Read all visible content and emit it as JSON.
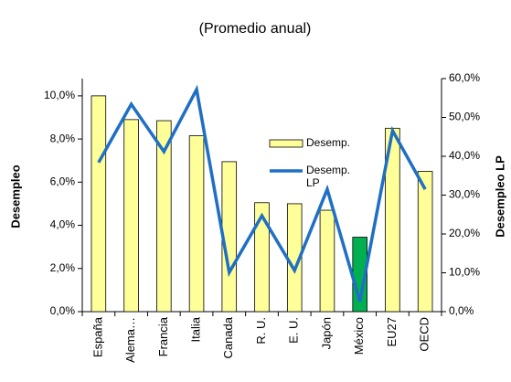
{
  "chart_data": {
    "type": "bar-line",
    "title": "(Promedio anual)",
    "y_label": "Desempleo",
    "y2_label": "Desempleo LP",
    "categories": [
      "España",
      "Alema…",
      "Francia",
      "Italia",
      "Canada",
      "R. U.",
      "E. U.",
      "Japón",
      "México",
      "EU27",
      "OECD"
    ],
    "series": [
      {
        "name": "Desemp.",
        "kind": "bar",
        "color": "#ffff99",
        "colors": [
          "#ffff99",
          "#ffff99",
          "#ffff99",
          "#ffff99",
          "#ffff99",
          "#ffff99",
          "#ffff99",
          "#ffff99",
          "#00b050",
          "#ffff99",
          "#ffff99"
        ],
        "values": [
          10.0,
          8.9,
          8.85,
          8.15,
          6.95,
          5.05,
          5.0,
          4.7,
          3.45,
          8.5,
          6.5
        ]
      },
      {
        "name": "Desemp. LP",
        "kind": "line",
        "axis": "y2",
        "color": "#1f6fc5",
        "values": [
          38.4,
          53.4,
          41.2,
          57.2,
          10.1,
          24.7,
          10.6,
          31.5,
          2.6,
          46.6,
          31.5
        ]
      }
    ],
    "ylim": [
      0,
      10.8
    ],
    "yticks": [
      {
        "value": 0,
        "label": "0,0%"
      },
      {
        "value": 2,
        "label": "2,0%"
      },
      {
        "value": 4,
        "label": "4,0%"
      },
      {
        "value": 6,
        "label": "6,0%"
      },
      {
        "value": 8,
        "label": "8,0%"
      },
      {
        "value": 10,
        "label": "10,0%"
      }
    ],
    "y2lim": [
      0,
      60
    ],
    "y2ticks": [
      {
        "value": 0,
        "label": "0,0%"
      },
      {
        "value": 10,
        "label": "10,0%"
      },
      {
        "value": 20,
        "label": "20,0%"
      },
      {
        "value": 30,
        "label": "30,0%"
      },
      {
        "value": 40,
        "label": "40,0%"
      },
      {
        "value": 50,
        "label": "50,0%"
      },
      {
        "value": 60,
        "label": "60,0%"
      }
    ]
  }
}
